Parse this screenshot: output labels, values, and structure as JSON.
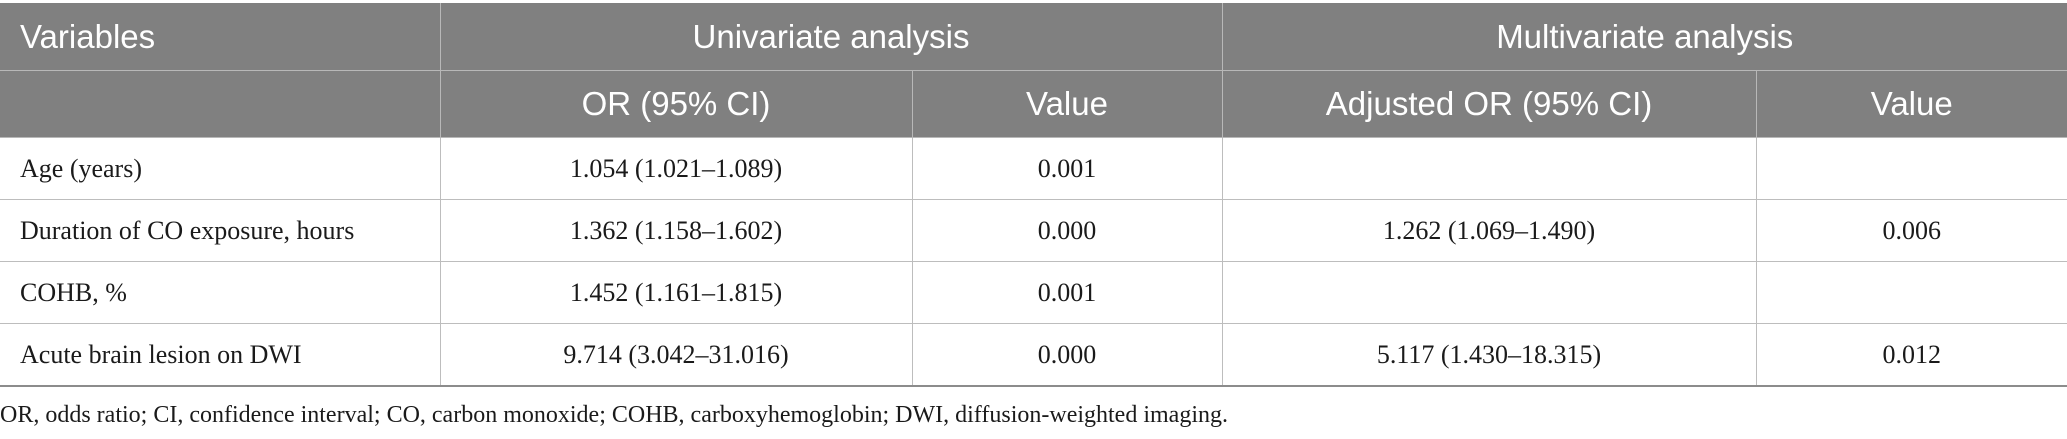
{
  "table": {
    "header_row1": {
      "variables": "Variables",
      "univariate": "Univariate analysis",
      "multivariate": "Multivariate analysis"
    },
    "header_row2": {
      "blank": "",
      "or_ci": "OR (95% CI)",
      "value1": "Value",
      "adjusted_or_ci": "Adjusted OR (95% CI)",
      "value2": "Value"
    },
    "rows": [
      {
        "variable": "Age (years)",
        "or_ci": "1.054 (1.021–1.089)",
        "value": "0.001",
        "adj_or_ci": "",
        "adj_value": ""
      },
      {
        "variable": "Duration of CO exposure, hours",
        "or_ci": "1.362 (1.158–1.602)",
        "value": "0.000",
        "adj_or_ci": "1.262 (1.069–1.490)",
        "adj_value": "0.006"
      },
      {
        "variable": "COHB, %",
        "or_ci": "1.452 (1.161–1.815)",
        "value": "0.001",
        "adj_or_ci": "",
        "adj_value": ""
      },
      {
        "variable": "Acute brain lesion on DWI",
        "or_ci": "9.714 (3.042–31.016)",
        "value": "0.000",
        "adj_or_ci": "5.117 (1.430–18.315)",
        "adj_value": "0.012"
      }
    ]
  },
  "footnote": "OR, odds ratio; CI, confidence interval; CO, carbon monoxide; COHB, carboxyhemoglobin; DWI, diffusion-weighted imaging."
}
